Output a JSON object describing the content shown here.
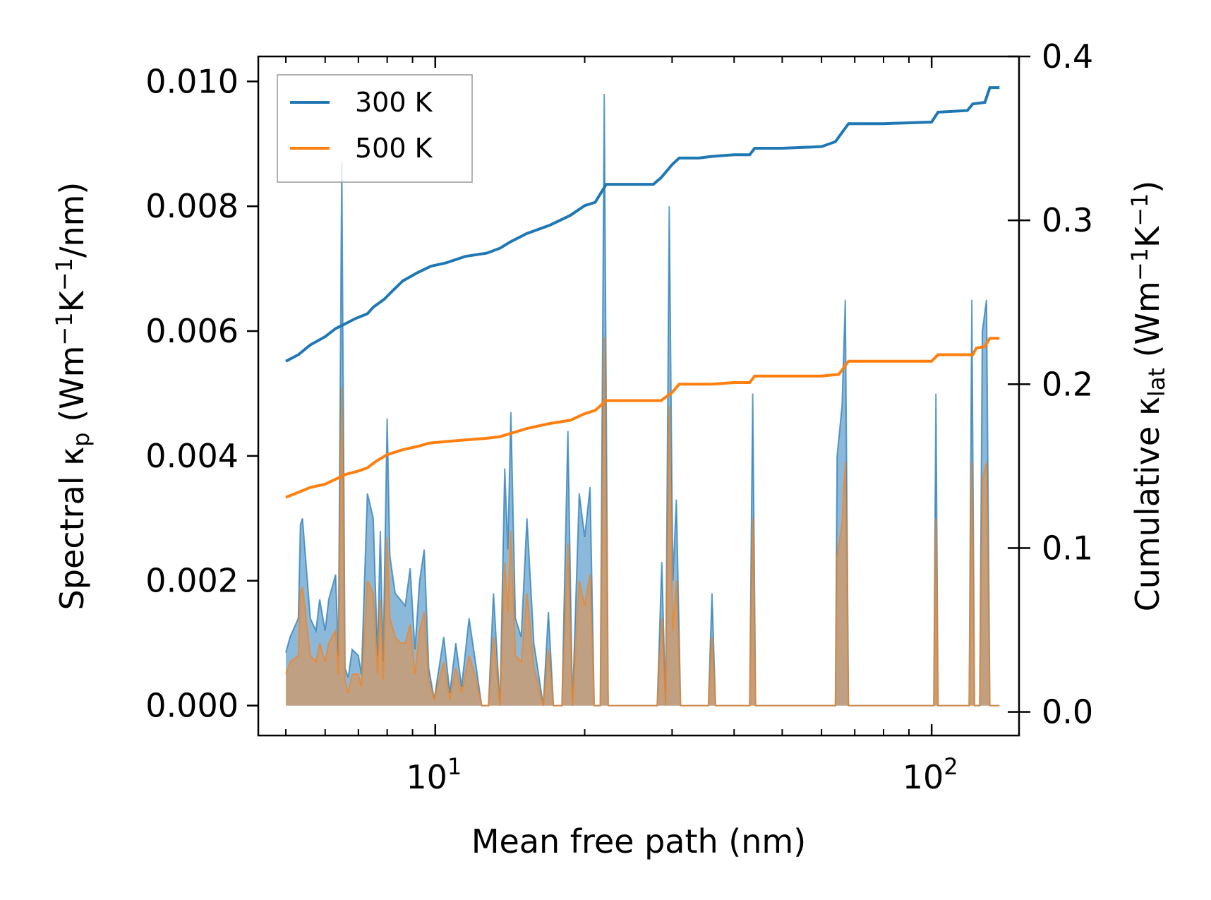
{
  "chart_data": {
    "type": "line",
    "xscale": "log",
    "xlabel": "Mean free path (nm)",
    "ylabel_left": "Spectral κ",
    "ylabel_left_sub": "p",
    "ylabel_left_units": " (Wm",
    "ylabel_left_units2": "K",
    "ylabel_left_units3": "/nm)",
    "ylabel_right": "Cumulative κ",
    "ylabel_right_sub": "lat",
    "ylabel_right_units": " (Wm",
    "ylabel_right_units2": "K",
    "ylabel_right_units3": ")",
    "superscript_minus1": "−1",
    "xlim": [
      4.4,
      150
    ],
    "ylim_left": [
      -0.00048,
      0.0104
    ],
    "ylim_right": [
      -0.0144,
      0.4
    ],
    "x_ticks": [
      {
        "value": 10,
        "base": "10",
        "exp": "1"
      },
      {
        "value": 100,
        "base": "10",
        "exp": "2"
      }
    ],
    "y_left_ticks": [
      "0.000",
      "0.002",
      "0.004",
      "0.006",
      "0.008",
      "0.010"
    ],
    "y_left_tick_values": [
      0,
      0.002,
      0.004,
      0.006,
      0.008,
      0.01
    ],
    "y_right_ticks": [
      "0.0",
      "0.1",
      "0.2",
      "0.3",
      "0.4"
    ],
    "y_right_tick_values": [
      0,
      0.1,
      0.2,
      0.3,
      0.4
    ],
    "legend": {
      "position": "top-left",
      "entries": [
        "300 K",
        "500 K"
      ]
    },
    "colors": {
      "s300": "#1f77b4",
      "s500": "#ff7f0e",
      "fill300": "#7fb0d6",
      "fill500": "#c89b72"
    },
    "series": [
      {
        "name": "300 K",
        "cumulative": [
          [
            5.0,
            0.214
          ],
          [
            5.3,
            0.218
          ],
          [
            5.6,
            0.224
          ],
          [
            6.0,
            0.229
          ],
          [
            6.3,
            0.234
          ],
          [
            6.5,
            0.236
          ],
          [
            6.6,
            0.237
          ],
          [
            6.9,
            0.24
          ],
          [
            7.3,
            0.243
          ],
          [
            7.5,
            0.247
          ],
          [
            7.9,
            0.252
          ],
          [
            8.2,
            0.257
          ],
          [
            8.6,
            0.263
          ],
          [
            9.2,
            0.268
          ],
          [
            9.8,
            0.272
          ],
          [
            10.5,
            0.274
          ],
          [
            11.5,
            0.278
          ],
          [
            12.7,
            0.28
          ],
          [
            13.5,
            0.283
          ],
          [
            14.2,
            0.287
          ],
          [
            15.3,
            0.292
          ],
          [
            17.0,
            0.297
          ],
          [
            18.7,
            0.303
          ],
          [
            20.0,
            0.309
          ],
          [
            21.0,
            0.311
          ],
          [
            22.1,
            0.322
          ],
          [
            24.0,
            0.322
          ],
          [
            27.5,
            0.322
          ],
          [
            28.5,
            0.326
          ],
          [
            30.0,
            0.334
          ],
          [
            31.0,
            0.338
          ],
          [
            34.0,
            0.338
          ],
          [
            36.0,
            0.339
          ],
          [
            40.0,
            0.34
          ],
          [
            43.0,
            0.34
          ],
          [
            44.0,
            0.344
          ],
          [
            50.0,
            0.344
          ],
          [
            60.0,
            0.345
          ],
          [
            64.0,
            0.348
          ],
          [
            68.0,
            0.359
          ],
          [
            80.0,
            0.359
          ],
          [
            100.0,
            0.36
          ],
          [
            103.0,
            0.366
          ],
          [
            118.0,
            0.367
          ],
          [
            121.0,
            0.371
          ],
          [
            128.0,
            0.372
          ],
          [
            131.0,
            0.381
          ],
          [
            137.0,
            0.381
          ]
        ],
        "spectral": [
          [
            5.0,
            0.00085
          ],
          [
            5.1,
            0.0011
          ],
          [
            5.3,
            0.0014
          ],
          [
            5.35,
            0.0029
          ],
          [
            5.4,
            0.003
          ],
          [
            5.6,
            0.0014
          ],
          [
            5.75,
            0.0012
          ],
          [
            5.85,
            0.0017
          ],
          [
            6.0,
            0.0012
          ],
          [
            6.1,
            0.0017
          ],
          [
            6.3,
            0.0021
          ],
          [
            6.38,
            0.0008
          ],
          [
            6.48,
            0.0087
          ],
          [
            6.58,
            0.0006
          ],
          [
            6.68,
            0.00045
          ],
          [
            6.8,
            0.0009
          ],
          [
            7.0,
            0.0008
          ],
          [
            7.1,
            0.0005
          ],
          [
            7.3,
            0.0034
          ],
          [
            7.5,
            0.003
          ],
          [
            7.65,
            0.0008
          ],
          [
            7.75,
            0.0028
          ],
          [
            7.85,
            0.0007
          ],
          [
            8.0,
            0.0046
          ],
          [
            8.1,
            0.0024
          ],
          [
            8.3,
            0.0018
          ],
          [
            8.5,
            0.0017
          ],
          [
            8.7,
            0.0016
          ],
          [
            8.9,
            0.0022
          ],
          [
            9.1,
            0.0009
          ],
          [
            9.3,
            0.002
          ],
          [
            9.5,
            0.0025
          ],
          [
            9.7,
            0.0006
          ],
          [
            9.95,
            0.0001
          ],
          [
            10.4,
            0.0011
          ],
          [
            10.7,
            0.0002
          ],
          [
            11.0,
            0.001
          ],
          [
            11.3,
            0.0003
          ],
          [
            11.7,
            0.0014
          ],
          [
            12.1,
            0.0006
          ],
          [
            12.4,
            0.0
          ],
          [
            12.8,
            0.0
          ],
          [
            13.1,
            0.0018
          ],
          [
            13.5,
            0.0
          ],
          [
            13.8,
            0.0038
          ],
          [
            14.0,
            0.0025
          ],
          [
            14.2,
            0.0047
          ],
          [
            14.5,
            0.0014
          ],
          [
            14.9,
            0.0011
          ],
          [
            15.3,
            0.003
          ],
          [
            15.8,
            0.001
          ],
          [
            16.5,
            0.0
          ],
          [
            16.9,
            0.0015
          ],
          [
            17.3,
            0.0
          ],
          [
            18.0,
            0.0
          ],
          [
            18.5,
            0.0044
          ],
          [
            18.9,
            0.0
          ],
          [
            19.5,
            0.0034
          ],
          [
            20.0,
            0.0027
          ],
          [
            20.5,
            0.0035
          ],
          [
            20.9,
            0.0
          ],
          [
            21.5,
            0.0
          ],
          [
            21.9,
            0.0098
          ],
          [
            22.3,
            0.0
          ],
          [
            28.0,
            0.0
          ],
          [
            28.6,
            0.0023
          ],
          [
            29.1,
            0.0
          ],
          [
            29.6,
            0.008
          ],
          [
            30.1,
            0.002
          ],
          [
            30.6,
            0.0033
          ],
          [
            31.2,
            0.0
          ],
          [
            35.5,
            0.0
          ],
          [
            36.1,
            0.0018
          ],
          [
            36.7,
            0.0
          ],
          [
            43.0,
            0.0
          ],
          [
            43.6,
            0.005
          ],
          [
            44.2,
            0.0
          ],
          [
            64.0,
            0.0
          ],
          [
            64.5,
            0.004
          ],
          [
            66.0,
            0.0048
          ],
          [
            67.0,
            0.0065
          ],
          [
            68.0,
            0.0
          ],
          [
            101.0,
            0.0
          ],
          [
            102.0,
            0.005
          ],
          [
            103.0,
            0.0
          ],
          [
            119.0,
            0.0
          ],
          [
            120.5,
            0.0065
          ],
          [
            122.0,
            0.0
          ],
          [
            125.0,
            0.0
          ],
          [
            126.5,
            0.006
          ],
          [
            129.0,
            0.0065
          ],
          [
            131.0,
            0.0
          ],
          [
            137.0,
            0.0
          ]
        ]
      },
      {
        "name": "500 K",
        "cumulative": [
          [
            5.0,
            0.131
          ],
          [
            5.3,
            0.134
          ],
          [
            5.6,
            0.137
          ],
          [
            6.0,
            0.139
          ],
          [
            6.4,
            0.143
          ],
          [
            6.6,
            0.145
          ],
          [
            7.0,
            0.147
          ],
          [
            7.3,
            0.149
          ],
          [
            7.6,
            0.153
          ],
          [
            8.0,
            0.157
          ],
          [
            8.6,
            0.16
          ],
          [
            9.2,
            0.162
          ],
          [
            9.7,
            0.164
          ],
          [
            10.5,
            0.165
          ],
          [
            11.5,
            0.166
          ],
          [
            12.7,
            0.167
          ],
          [
            13.5,
            0.168
          ],
          [
            14.2,
            0.17
          ],
          [
            15.3,
            0.173
          ],
          [
            17.0,
            0.176
          ],
          [
            18.7,
            0.178
          ],
          [
            20.0,
            0.182
          ],
          [
            21.0,
            0.184
          ],
          [
            22.1,
            0.19
          ],
          [
            24.0,
            0.19
          ],
          [
            28.5,
            0.19
          ],
          [
            30.0,
            0.195
          ],
          [
            31.0,
            0.2
          ],
          [
            36.0,
            0.2
          ],
          [
            40.0,
            0.201
          ],
          [
            43.0,
            0.201
          ],
          [
            44.0,
            0.205
          ],
          [
            60.0,
            0.205
          ],
          [
            65.0,
            0.206
          ],
          [
            68.0,
            0.214
          ],
          [
            80.0,
            0.214
          ],
          [
            100.0,
            0.214
          ],
          [
            103.0,
            0.218
          ],
          [
            121.0,
            0.218
          ],
          [
            123.0,
            0.222
          ],
          [
            128.0,
            0.223
          ],
          [
            131.0,
            0.228
          ],
          [
            137.0,
            0.228
          ]
        ],
        "spectral": [
          [
            5.0,
            0.0005
          ],
          [
            5.1,
            0.0007
          ],
          [
            5.3,
            0.0008
          ],
          [
            5.35,
            0.0018
          ],
          [
            5.4,
            0.0019
          ],
          [
            5.6,
            0.0008
          ],
          [
            5.75,
            0.0007
          ],
          [
            5.85,
            0.001
          ],
          [
            6.0,
            0.0007
          ],
          [
            6.1,
            0.001
          ],
          [
            6.3,
            0.0012
          ],
          [
            6.38,
            0.0005
          ],
          [
            6.48,
            0.0051
          ],
          [
            6.58,
            0.0004
          ],
          [
            6.68,
            0.0002
          ],
          [
            6.8,
            0.0005
          ],
          [
            7.0,
            0.0005
          ],
          [
            7.1,
            0.0003
          ],
          [
            7.3,
            0.002
          ],
          [
            7.5,
            0.0018
          ],
          [
            7.65,
            0.0005
          ],
          [
            7.75,
            0.0017
          ],
          [
            7.85,
            0.0004
          ],
          [
            8.0,
            0.0027
          ],
          [
            8.1,
            0.0014
          ],
          [
            8.3,
            0.0011
          ],
          [
            8.5,
            0.001
          ],
          [
            8.7,
            0.001
          ],
          [
            8.9,
            0.0013
          ],
          [
            9.1,
            0.0005
          ],
          [
            9.3,
            0.0012
          ],
          [
            9.5,
            0.0015
          ],
          [
            9.7,
            0.0004
          ],
          [
            9.95,
            0.0001
          ],
          [
            10.4,
            0.0007
          ],
          [
            10.7,
            0.0001
          ],
          [
            11.0,
            0.0006
          ],
          [
            11.3,
            0.0002
          ],
          [
            11.7,
            0.0008
          ],
          [
            12.1,
            0.0004
          ],
          [
            12.4,
            0.0
          ],
          [
            12.8,
            0.0
          ],
          [
            13.1,
            0.0011
          ],
          [
            13.5,
            0.0
          ],
          [
            13.8,
            0.0023
          ],
          [
            14.0,
            0.0015
          ],
          [
            14.2,
            0.0028
          ],
          [
            14.5,
            0.0008
          ],
          [
            14.9,
            0.0007
          ],
          [
            15.3,
            0.0018
          ],
          [
            15.8,
            0.0006
          ],
          [
            16.5,
            0.0
          ],
          [
            16.9,
            0.0009
          ],
          [
            17.3,
            0.0
          ],
          [
            18.0,
            0.0
          ],
          [
            18.5,
            0.0026
          ],
          [
            18.9,
            0.0
          ],
          [
            19.5,
            0.002
          ],
          [
            20.0,
            0.0016
          ],
          [
            20.5,
            0.0021
          ],
          [
            20.9,
            0.0
          ],
          [
            21.5,
            0.0
          ],
          [
            21.9,
            0.0059
          ],
          [
            22.3,
            0.0
          ],
          [
            28.0,
            0.0
          ],
          [
            28.6,
            0.0014
          ],
          [
            29.1,
            0.0
          ],
          [
            29.6,
            0.0048
          ],
          [
            30.1,
            0.0012
          ],
          [
            30.6,
            0.002
          ],
          [
            31.2,
            0.0
          ],
          [
            35.5,
            0.0
          ],
          [
            36.1,
            0.0011
          ],
          [
            36.7,
            0.0
          ],
          [
            43.0,
            0.0
          ],
          [
            43.6,
            0.003
          ],
          [
            44.2,
            0.0
          ],
          [
            64.0,
            0.0
          ],
          [
            64.5,
            0.0024
          ],
          [
            66.0,
            0.0029
          ],
          [
            67.0,
            0.0039
          ],
          [
            68.0,
            0.0
          ],
          [
            101.0,
            0.0
          ],
          [
            102.0,
            0.003
          ],
          [
            103.0,
            0.0
          ],
          [
            119.0,
            0.0
          ],
          [
            120.5,
            0.0039
          ],
          [
            122.0,
            0.0
          ],
          [
            125.0,
            0.0
          ],
          [
            126.5,
            0.0036
          ],
          [
            129.0,
            0.0039
          ],
          [
            131.0,
            0.0
          ],
          [
            137.0,
            0.0
          ]
        ]
      }
    ]
  }
}
